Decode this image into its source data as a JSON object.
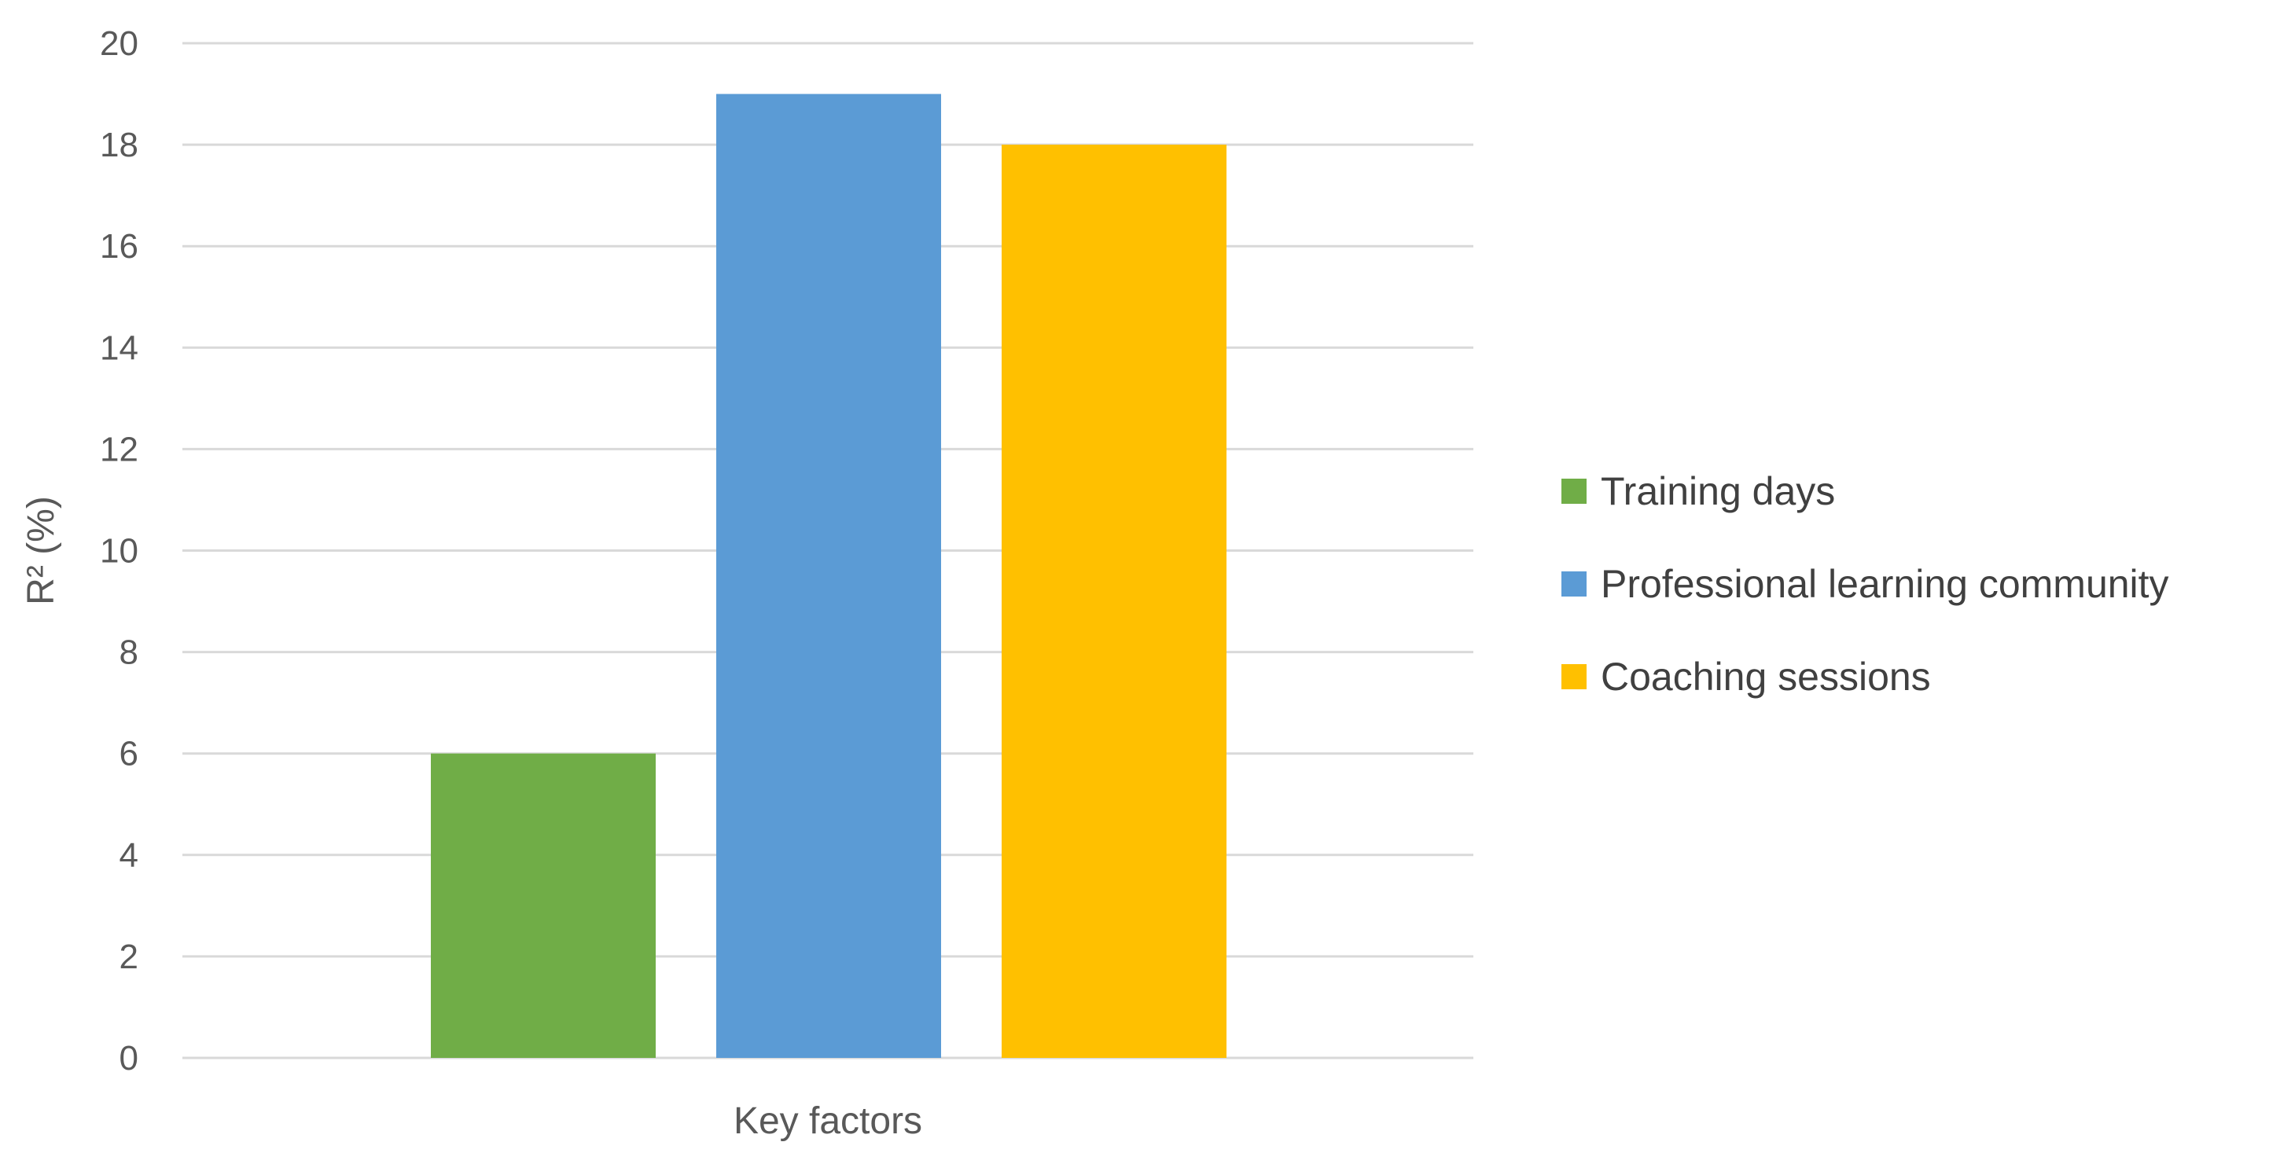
{
  "chart_data": {
    "type": "bar",
    "categories": [
      "Key factors"
    ],
    "series": [
      {
        "name": "Training days",
        "values": [
          6
        ],
        "color": "#70ad47"
      },
      {
        "name": "Professional learning community",
        "values": [
          19
        ],
        "color": "#5b9bd5"
      },
      {
        "name": "Coaching sessions",
        "values": [
          18
        ],
        "color": "#ffc000"
      }
    ],
    "title": "",
    "xlabel": "Key factors",
    "ylabel": "R² (%)",
    "ylim": [
      0,
      20
    ],
    "yticks": [
      "0",
      "2",
      "4",
      "6",
      "8",
      "10",
      "12",
      "14",
      "16",
      "18",
      "20"
    ],
    "grid": true,
    "legend_position": "right"
  }
}
